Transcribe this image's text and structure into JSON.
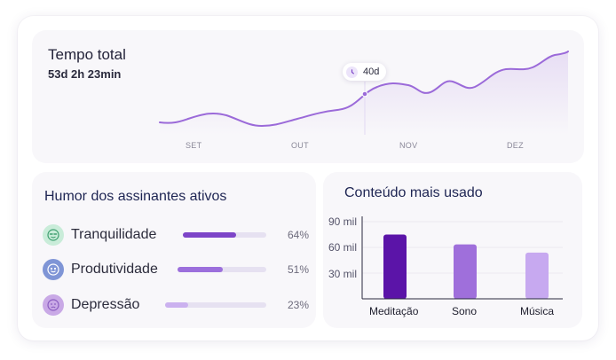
{
  "total": {
    "title": "Tempo total",
    "value": "53d 2h 23min",
    "tooltip": "40d",
    "months": [
      "SET",
      "OUT",
      "NOV",
      "DEZ"
    ],
    "line_color": "#9b6ad9"
  },
  "mood": {
    "title": "Humor dos assinantes ativos",
    "items": [
      {
        "label": "Tranquilidade",
        "percent": 64,
        "percent_label": "64%",
        "icon": "calm-face-icon",
        "icon_bg": "#c9ecd9",
        "fill": "#7d45c8"
      },
      {
        "label": "Produtividade",
        "percent": 51,
        "percent_label": "51%",
        "icon": "productive-face-icon",
        "icon_bg": "#7f95d6",
        "fill": "#9c6fdc"
      },
      {
        "label": "Depressão",
        "percent": 23,
        "percent_label": "23%",
        "icon": "sad-face-icon",
        "icon_bg": "#c9a9e6",
        "fill": "#cbb1ef"
      }
    ]
  },
  "content": {
    "title": "Conteúdo mais usado",
    "chart_data": {
      "type": "bar",
      "categories": [
        "Meditação",
        "Sono",
        "Música"
      ],
      "values": [
        78000,
        66000,
        56000
      ],
      "yticks": [
        "90 mil",
        "60 mil",
        "30 mil"
      ],
      "ylim": [
        0,
        100000
      ],
      "colors": [
        "#5b14a8",
        "#9f6fdb",
        "#c7a9f0"
      ]
    }
  }
}
